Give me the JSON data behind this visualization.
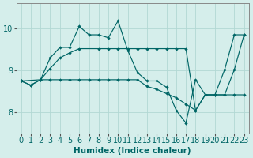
{
  "xlabel": "Humidex (Indice chaleur)",
  "background_color": "#d5eeeb",
  "grid_color": "#b2d8d4",
  "line_color": "#006666",
  "xlim": [
    -0.5,
    23.5
  ],
  "ylim": [
    7.5,
    10.6
  ],
  "yticks": [
    8,
    9,
    10
  ],
  "xticks": [
    0,
    1,
    2,
    3,
    4,
    5,
    6,
    7,
    8,
    9,
    10,
    11,
    12,
    13,
    14,
    15,
    16,
    17,
    18,
    19,
    20,
    21,
    22,
    23
  ],
  "curve_a_x": [
    0,
    1,
    2,
    3,
    4,
    5,
    6,
    7,
    8,
    9,
    10,
    11,
    12,
    13,
    14,
    15,
    16,
    17,
    18,
    19,
    20,
    21,
    22,
    23
  ],
  "curve_a_y": [
    8.75,
    8.65,
    8.78,
    9.3,
    9.55,
    9.55,
    10.05,
    9.85,
    9.85,
    9.78,
    10.18,
    9.48,
    8.95,
    8.75,
    8.75,
    8.6,
    8.05,
    7.75,
    8.78,
    8.42,
    8.42,
    9.02,
    9.85,
    9.85
  ],
  "curve_b_x": [
    0,
    2,
    3,
    4,
    5,
    6,
    8,
    9,
    10,
    11,
    12,
    13,
    14,
    15,
    16,
    17,
    18,
    19,
    20,
    21,
    22,
    23
  ],
  "curve_b_y": [
    8.75,
    8.78,
    9.05,
    9.3,
    9.42,
    9.52,
    9.52,
    9.52,
    9.52,
    9.52,
    9.52,
    9.52,
    9.52,
    9.52,
    9.52,
    9.52,
    8.05,
    8.42,
    8.42,
    8.42,
    9.02,
    9.85
  ],
  "curve_c_x": [
    0,
    1,
    2,
    3,
    4,
    5,
    6,
    7,
    8,
    9,
    10,
    11,
    12,
    13,
    14,
    15,
    16,
    17,
    18,
    19,
    20,
    21,
    22,
    23
  ],
  "curve_c_y": [
    8.75,
    8.65,
    8.78,
    8.78,
    8.78,
    8.78,
    8.78,
    8.78,
    8.78,
    8.78,
    8.78,
    8.78,
    8.78,
    8.62,
    8.55,
    8.45,
    8.35,
    8.2,
    8.05,
    8.42,
    8.42,
    8.42,
    8.42,
    8.42
  ]
}
